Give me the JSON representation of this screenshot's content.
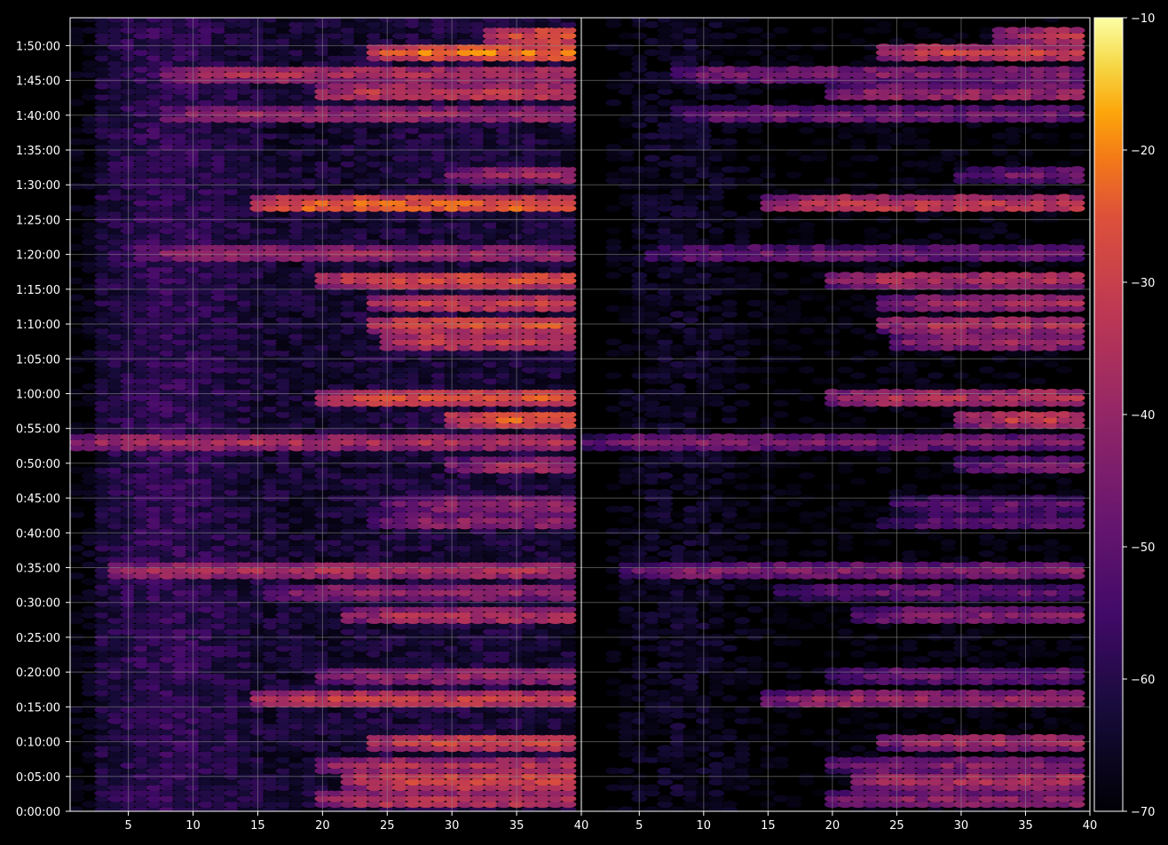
{
  "chart_data": {
    "type": "heatmap",
    "title": "",
    "xlabel": "",
    "ylabel": "",
    "x_ticks": [
      5,
      10,
      15,
      20,
      25,
      30,
      35,
      40
    ],
    "xlim": [
      0.5,
      40
    ],
    "y_tick_labels": [
      "0:00:00",
      "0:05:00",
      "0:10:00",
      "0:15:00",
      "0:20:00",
      "0:25:00",
      "0:30:00",
      "0:35:00",
      "0:40:00",
      "0:45:00",
      "0:50:00",
      "0:55:00",
      "1:00:00",
      "1:05:00",
      "1:10:00",
      "1:15:00",
      "1:20:00",
      "1:25:00",
      "1:30:00",
      "1:35:00",
      "1:40:00",
      "1:45:00",
      "1:50:00"
    ],
    "ylim_minutes": [
      0,
      114
    ],
    "grid": true,
    "colormap": "inferno",
    "colorbar": {
      "ticks": [
        -10,
        -20,
        -30,
        -40,
        -50,
        -60,
        -70
      ],
      "range": [
        -70,
        -10
      ]
    },
    "panels": [
      {
        "name": "left",
        "level_offset_db": 0,
        "hot_bands": [
          {
            "t": 1.5,
            "level": -32,
            "x_from": 20
          },
          {
            "t": 4.5,
            "level": -26,
            "x_from": 22
          },
          {
            "t": 6.5,
            "level": -34,
            "x_from": 20
          },
          {
            "t": 10,
            "level": -28,
            "x_from": 24
          },
          {
            "t": 16,
            "level": -30,
            "x_from": 15
          },
          {
            "t": 19.5,
            "level": -38,
            "x_from": 20
          },
          {
            "t": 28,
            "level": -34,
            "x_from": 22
          },
          {
            "t": 31.5,
            "level": -40,
            "x_from": 16
          },
          {
            "t": 34.5,
            "level": -35,
            "x_from": 4
          },
          {
            "t": 41.5,
            "level": -40,
            "x_from": 24
          },
          {
            "t": 44,
            "level": -40,
            "x_from": 25
          },
          {
            "t": 49.5,
            "level": -36,
            "x_from": 30
          },
          {
            "t": 53,
            "level": -36,
            "x_from": 1
          },
          {
            "t": 56.5,
            "level": -22,
            "x_from": 30
          },
          {
            "t": 59.5,
            "level": -26,
            "x_from": 20
          },
          {
            "t": 67.5,
            "level": -30,
            "x_from": 25
          },
          {
            "t": 70,
            "level": -26,
            "x_from": 24
          },
          {
            "t": 73,
            "level": -30,
            "x_from": 24
          },
          {
            "t": 76.5,
            "level": -26,
            "x_from": 20
          },
          {
            "t": 80,
            "level": -38,
            "x_from": 6
          },
          {
            "t": 87,
            "level": -22,
            "x_from": 15
          },
          {
            "t": 91.5,
            "level": -38,
            "x_from": 30
          },
          {
            "t": 100,
            "level": -38,
            "x_from": 8
          },
          {
            "t": 103,
            "level": -30,
            "x_from": 20
          },
          {
            "t": 106,
            "level": -34,
            "x_from": 8
          },
          {
            "t": 109,
            "level": -22,
            "x_from": 24
          },
          {
            "t": 111.5,
            "level": -24,
            "x_from": 33
          }
        ]
      },
      {
        "name": "right",
        "level_offset_db": -8,
        "hot_bands": [
          {
            "t": 1.5,
            "level": -32,
            "x_from": 20
          },
          {
            "t": 4.5,
            "level": -26,
            "x_from": 22
          },
          {
            "t": 6.5,
            "level": -34,
            "x_from": 20
          },
          {
            "t": 10,
            "level": -28,
            "x_from": 24
          },
          {
            "t": 16,
            "level": -30,
            "x_from": 15
          },
          {
            "t": 19.5,
            "level": -38,
            "x_from": 20
          },
          {
            "t": 28,
            "level": -34,
            "x_from": 22
          },
          {
            "t": 31.5,
            "level": -40,
            "x_from": 16
          },
          {
            "t": 34.5,
            "level": -35,
            "x_from": 4
          },
          {
            "t": 41.5,
            "level": -40,
            "x_from": 24
          },
          {
            "t": 44,
            "level": -40,
            "x_from": 25
          },
          {
            "t": 49.5,
            "level": -36,
            "x_from": 30
          },
          {
            "t": 53,
            "level": -36,
            "x_from": 1
          },
          {
            "t": 56.5,
            "level": -22,
            "x_from": 30
          },
          {
            "t": 59.5,
            "level": -26,
            "x_from": 20
          },
          {
            "t": 67.5,
            "level": -30,
            "x_from": 25
          },
          {
            "t": 70,
            "level": -26,
            "x_from": 24
          },
          {
            "t": 73,
            "level": -30,
            "x_from": 24
          },
          {
            "t": 76.5,
            "level": -26,
            "x_from": 20
          },
          {
            "t": 80,
            "level": -38,
            "x_from": 6
          },
          {
            "t": 87,
            "level": -22,
            "x_from": 15
          },
          {
            "t": 91.5,
            "level": -38,
            "x_from": 30
          },
          {
            "t": 100,
            "level": -38,
            "x_from": 8
          },
          {
            "t": 103,
            "level": -30,
            "x_from": 20
          },
          {
            "t": 106,
            "level": -34,
            "x_from": 8
          },
          {
            "t": 109,
            "level": -22,
            "x_from": 24
          },
          {
            "t": 111.5,
            "level": -24,
            "x_from": 33
          }
        ]
      }
    ]
  },
  "colors": {
    "background": "#000000",
    "axis": "#ffffff",
    "grid": "#8c8c8c"
  }
}
